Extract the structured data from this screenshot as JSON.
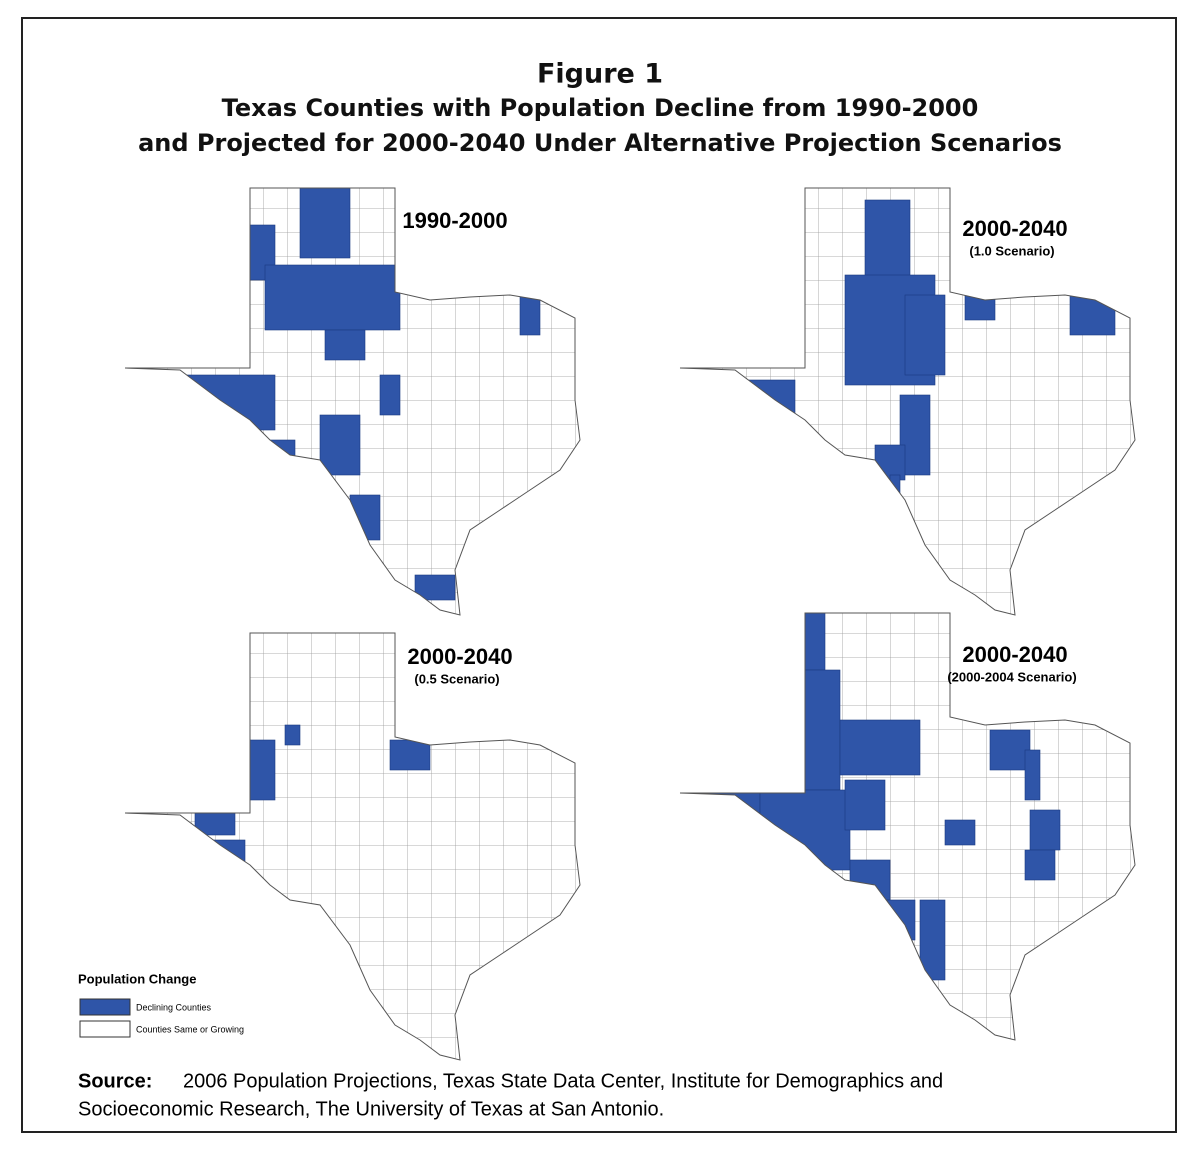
{
  "header": {
    "figure": "Figure 1",
    "title": [
      "Texas Counties with Population Decline from 1990-2000",
      "and Projected for 2000-2040 Under Alternative Projection Scenarios"
    ]
  },
  "maps": [
    {
      "title": "1990-2000"
    },
    {
      "title": "2000-2040",
      "subtitle": "(1.0 Scenario)"
    },
    {
      "title": "2000-2040",
      "subtitle": "(0.5 Scenario)"
    },
    {
      "title": "2000-2040",
      "subtitle": "(2000-2004 Scenario)"
    }
  ],
  "legend": {
    "title": "Population Change",
    "items": [
      "Declining Counties",
      "Counties Same or Growing"
    ]
  },
  "source": {
    "label": "Source:",
    "text": [
      "2006 Population Projections, Texas State Data Center, Institute for Demographics and",
      "Socioeconomic Research, The University of Texas at San Antonio."
    ]
  }
}
